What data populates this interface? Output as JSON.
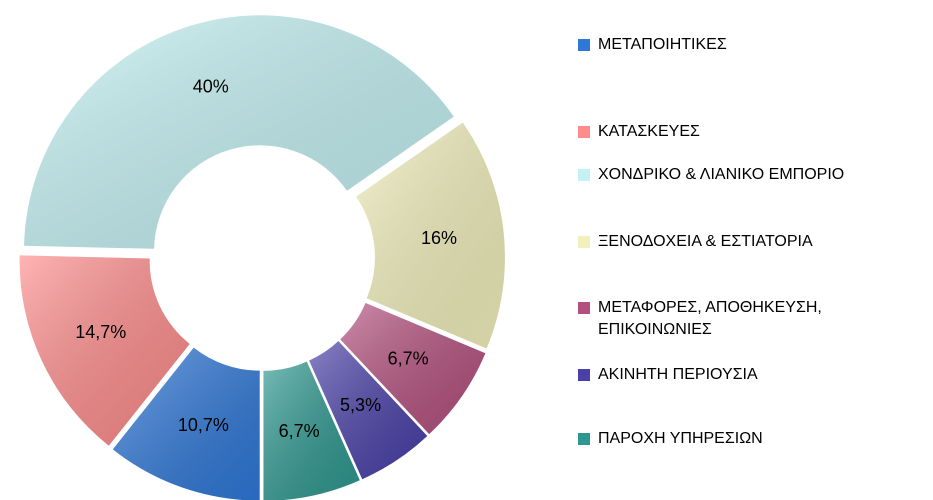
{
  "chart_data": {
    "type": "donut",
    "categories": [
      "ΜΕΤΑΠΟΙΗΤΙΚΕΣ",
      "ΚΑΤΑΣΚΕΥΕΣ",
      "ΧΟΝΔΡΙΚΟ & ΛΙΑΝΙΚΟ ΕΜΠΟΡΙΟ",
      "ΞΕΝΟΔΟΧΕΙΑ & ΕΣΤΙΑΤΟΡΙΑ",
      "ΜΕΤΑΦΟΡΕΣ, ΑΠΟΘΗΚΕΥΣΗ, ΕΠΙΚΟΙΝΩΝΙΕΣ",
      "ΑΚΙΝΗΤΗ ΠΕΡΙΟΥΣΙΑ",
      "ΠΑΡΟΧΗ ΥΠΗΡΕΣΙΩΝ"
    ],
    "values": [
      10.7,
      14.7,
      40,
      16,
      6.7,
      5.3,
      6.7
    ],
    "value_labels": [
      "10,7%",
      "14,7%",
      "40%",
      "16%",
      "6,7%",
      "5,3%",
      "6,7%"
    ],
    "colors": [
      "#2f78d8",
      "#ff8c8c",
      "#c4f2f4",
      "#f2f0bc",
      "#b4507e",
      "#4a40a8",
      "#2e9890"
    ],
    "legend": "right"
  }
}
